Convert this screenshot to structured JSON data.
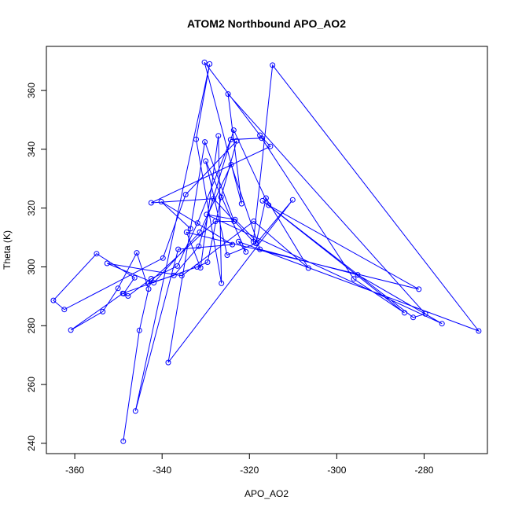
{
  "chart_data": {
    "type": "line",
    "title": "ATOM2 Northbound APO_AO2",
    "xlabel": "APO_AO2",
    "ylabel": "Theta (K)",
    "xlim": [
      -366.5,
      -265.5
    ],
    "ylim": [
      236.5,
      375
    ],
    "xticks": [
      -360,
      -340,
      -320,
      -300,
      -280
    ],
    "yticks": [
      240,
      260,
      280,
      300,
      320,
      340,
      360
    ],
    "grid": false,
    "legend": "none",
    "colors": {
      "series": "#0000ff",
      "axis": "#000000"
    },
    "x": [
      -348.9,
      -345.2,
      -343.1,
      -345.8,
      -350.1,
      -353.6,
      -360.9,
      -349.0,
      -332.0,
      -329.6,
      -326.5,
      -322.9,
      -334.6,
      -339.8,
      -362.4,
      -364.9,
      -355.0,
      -346.3,
      -348.8,
      -347.8,
      -342.5,
      -336.5,
      -331.9,
      -324.3,
      -317.2,
      -296.1,
      -284.5,
      -317.0,
      -282.5,
      -279.7,
      -324.9,
      -321.8,
      -330.3,
      -317.6,
      -315.2,
      -342.5,
      -328.2,
      -319.1,
      -314.7,
      -267.5,
      -322.5,
      -320.8,
      -330.0,
      -325.1,
      -318.5,
      -316.2,
      -306.5,
      -319.0,
      -335.5,
      -352.6,
      -341.9,
      -331.4,
      -324.2,
      -317.6,
      -295.2,
      -275.9,
      -329.8,
      -323.3,
      -318.2,
      -310.1,
      -338.6,
      -330.2,
      -323.5,
      -327.8,
      -343.2,
      -337.3,
      -331.6,
      -323.6,
      -315.6,
      -281.2,
      -334.4,
      -331.2,
      -327.1,
      -326.4,
      -332.2,
      -329.1,
      -346.1,
      -336.3,
      -323.9,
      -340.2,
      -333.5
    ],
    "y": [
      240.7,
      278.4,
      292.5,
      304.8,
      292.7,
      284.8,
      278.5,
      291.0,
      300.0,
      301.6,
      323.7,
      342.9,
      324.6,
      303.0,
      285.5,
      288.6,
      304.5,
      296.3,
      290.9,
      290.1,
      296.0,
      300.3,
      314.9,
      343.3,
      343.8,
      295.9,
      284.4,
      322.5,
      282.8,
      284.0,
      358.8,
      321.5,
      369.6,
      344.8,
      341.0,
      321.8,
      323.2,
      308.6,
      368.6,
      278.2,
      308.6,
      305.1,
      336.0,
      304.0,
      308.0,
      323.4,
      299.6,
      315.5,
      297.0,
      301.2,
      294.6,
      311.8,
      334.8,
      306.0,
      297.3,
      280.7,
      317.8,
      316.1,
      308.4,
      322.8,
      267.5,
      342.5,
      315.5,
      315.5,
      294.3,
      297.1,
      307.0,
      346.5,
      321.0,
      292.4,
      311.8,
      299.7,
      344.6,
      294.4,
      343.4,
      369.0,
      251.0,
      306.0,
      307.6,
      322.2,
      313.0
    ]
  }
}
